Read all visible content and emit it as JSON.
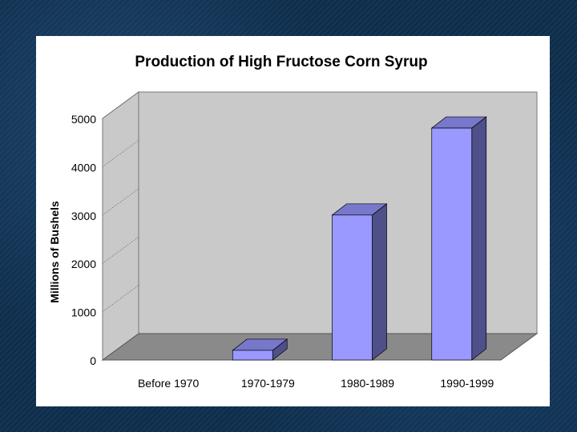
{
  "chart_data": {
    "type": "bar",
    "title": "Production of High Fructose Corn Syrup",
    "xlabel": "",
    "ylabel": "Millions of Bushels",
    "categories": [
      "Before 1970",
      "1970-1979",
      "1980-1989",
      "1990-1999"
    ],
    "values": [
      0,
      200,
      3000,
      4800
    ],
    "ylim": [
      0,
      5000
    ],
    "yticks": [
      "0",
      "1000",
      "2000",
      "3000",
      "4000",
      "5000"
    ],
    "grid": false,
    "legend": "none"
  },
  "colors": {
    "background": "#0f2f4f",
    "slide": "#ffffff",
    "back_wall": "#c9c9c9",
    "floor": "#8a8a8a",
    "bar_front": "#9999ff",
    "bar_top": "#7777cc",
    "bar_side": "#4f4f8a"
  }
}
